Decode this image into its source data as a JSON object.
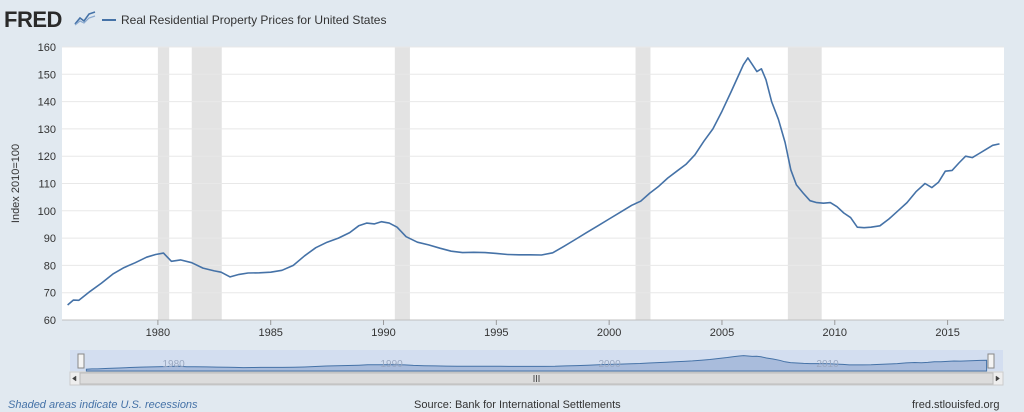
{
  "header": {
    "logo_text": "FRED",
    "legend_label": "Real Residential Property Prices for United States"
  },
  "footer": {
    "recessions_note": "Shaded areas indicate U.S. recessions",
    "source": "Source: Bank for International Settlements",
    "site": "fred.stlouisfed.org"
  },
  "colors": {
    "series": "#4572a7",
    "recession": "#e3e3e3",
    "plot_bg": "#ffffff",
    "frame_bg": "#e1e9f0",
    "navigator_fill": "#a9bcdc",
    "navigator_shade": "#d3def0"
  },
  "chart_data": {
    "type": "line",
    "title": "",
    "ylabel": "Index 2010=100",
    "xlabel": "",
    "ylim": [
      60,
      160
    ],
    "xlim": [
      1975.75,
      2017.5
    ],
    "yticks": [
      60,
      70,
      80,
      90,
      100,
      110,
      120,
      130,
      140,
      150,
      160
    ],
    "xticks": [
      1980,
      1985,
      1990,
      1995,
      2000,
      2005,
      2010,
      2015
    ],
    "grid": "horizontal",
    "legend": "top-left",
    "recessions": [
      [
        1980.0,
        1980.5
      ],
      [
        1981.5,
        1982.83
      ],
      [
        1990.5,
        1991.17
      ],
      [
        2001.17,
        2001.83
      ],
      [
        2007.92,
        2009.42
      ]
    ],
    "series": [
      {
        "name": "Real Residential Property Prices for United States",
        "x": [
          1976.0,
          1976.25,
          1976.5,
          1977.0,
          1977.5,
          1978.0,
          1978.5,
          1979.0,
          1979.5,
          1979.9,
          1980.25,
          1980.6,
          1981.0,
          1981.5,
          1982.0,
          1982.5,
          1982.8,
          1983.2,
          1983.6,
          1984.0,
          1984.5,
          1985.0,
          1985.5,
          1986.0,
          1986.5,
          1987.0,
          1987.5,
          1988.0,
          1988.5,
          1988.9,
          1989.25,
          1989.6,
          1989.9,
          1990.25,
          1990.6,
          1991.0,
          1991.5,
          1992.0,
          1992.5,
          1993.0,
          1993.5,
          1994.0,
          1994.5,
          1995.0,
          1995.5,
          1996.0,
          1996.5,
          1997.0,
          1997.5,
          1998.0,
          1998.5,
          1999.0,
          1999.5,
          2000.0,
          2000.5,
          2001.0,
          2001.4,
          2001.8,
          2002.2,
          2002.6,
          2003.0,
          2003.4,
          2003.8,
          2004.2,
          2004.6,
          2005.0,
          2005.4,
          2005.7,
          2005.95,
          2006.15,
          2006.35,
          2006.55,
          2006.75,
          2006.95,
          2007.2,
          2007.5,
          2007.8,
          2008.05,
          2008.3,
          2008.6,
          2008.9,
          2009.2,
          2009.5,
          2009.8,
          2010.1,
          2010.4,
          2010.7,
          2011.0,
          2011.3,
          2011.6,
          2012.0,
          2012.4,
          2012.8,
          2013.2,
          2013.6,
          2014.0,
          2014.3,
          2014.6,
          2014.9,
          2015.2,
          2015.5,
          2015.8,
          2016.1,
          2016.4,
          2016.7,
          2017.0,
          2017.3
        ],
        "values": [
          65.5,
          67.3,
          67.2,
          70.5,
          73.5,
          76.8,
          79.2,
          81.0,
          83.0,
          84.0,
          84.5,
          81.5,
          82.0,
          81.0,
          79.0,
          78.0,
          77.5,
          75.8,
          76.7,
          77.2,
          77.3,
          77.5,
          78.2,
          80.0,
          83.5,
          86.5,
          88.5,
          90.0,
          92.0,
          94.5,
          95.5,
          95.2,
          96.0,
          95.5,
          94.0,
          90.5,
          88.5,
          87.5,
          86.3,
          85.2,
          84.7,
          84.8,
          84.7,
          84.4,
          84.0,
          83.9,
          83.9,
          83.8,
          84.6,
          87.0,
          89.5,
          92.0,
          94.5,
          97.0,
          99.5,
          102.0,
          103.5,
          106.5,
          109.0,
          112.0,
          114.5,
          117.0,
          120.5,
          125.5,
          130.0,
          136.5,
          143.5,
          149.0,
          153.5,
          156.0,
          153.5,
          151.0,
          152.0,
          148.0,
          140.0,
          133.5,
          125.0,
          115.0,
          109.5,
          106.5,
          103.7,
          103.0,
          102.8,
          103.0,
          101.5,
          99.2,
          97.5,
          94.0,
          93.8,
          94.0,
          94.5,
          97.0,
          100.0,
          103.0,
          107.0,
          110.0,
          108.5,
          110.5,
          114.5,
          114.8,
          117.5,
          120.0,
          119.5,
          121.0,
          122.5,
          124.0,
          124.5
        ]
      }
    ],
    "navigator": {
      "tick_labels": [
        "1980",
        "1990",
        "2000",
        "2010"
      ]
    }
  }
}
